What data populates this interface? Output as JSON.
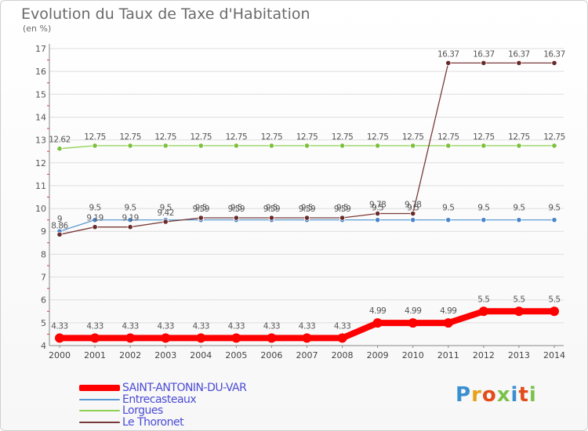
{
  "title": "Evolution du Taux de Taxe d'Habitation",
  "unit": "(en %)",
  "logo": {
    "text": "Proxiti",
    "colors": [
      "#3a8fd0",
      "#e8a21a",
      "#e34b1b",
      "#7bc24a",
      "#3a8fd0",
      "#e34b1b",
      "#7bc24a"
    ]
  },
  "chart_data": {
    "type": "line",
    "x": [
      "2000",
      "2001",
      "2002",
      "2003",
      "2004",
      "2005",
      "2006",
      "2007",
      "2008",
      "2009",
      "2010",
      "2011",
      "2012",
      "2013",
      "2014"
    ],
    "ylim": [
      4,
      17
    ],
    "yticks": [
      "4",
      "5",
      "6",
      "7",
      "8",
      "9",
      "10",
      "11",
      "12",
      "13",
      "14",
      "15",
      "16",
      "17"
    ],
    "grid": "horizontal",
    "legend_position": "bottom",
    "series": [
      {
        "name": "SAINT-ANTONIN-DU-VAR",
        "color": "#ff0000",
        "marker": "#ff0000",
        "width": 8,
        "values": [
          4.33,
          4.33,
          4.33,
          4.33,
          4.33,
          4.33,
          4.33,
          4.33,
          4.33,
          4.99,
          4.99,
          4.99,
          5.5,
          5.5,
          5.5
        ],
        "labels": [
          "4.33",
          "4.33",
          "4.33",
          "4.33",
          "4.33",
          "4.33",
          "4.33",
          "4.33",
          "4.33",
          "4.99",
          "4.99",
          "4.99",
          "5.5",
          "5.5",
          "5.5"
        ]
      },
      {
        "name": "Entrecasteaux",
        "color": "#5b9bd5",
        "marker": "#4a86c8",
        "width": 1.3,
        "values": [
          9.0,
          9.5,
          9.5,
          9.5,
          9.5,
          9.5,
          9.5,
          9.5,
          9.5,
          9.5,
          9.5,
          9.5,
          9.5,
          9.5,
          9.5
        ],
        "labels": [
          "9",
          "9.5",
          "9.5",
          "9.5",
          "9.5",
          "9.5",
          "9.5",
          "9.5",
          "9.5",
          "9.5",
          "9.5",
          "9.5",
          "9.5",
          "9.5",
          "9.5"
        ]
      },
      {
        "name": "Lorgues",
        "color": "#8fd14f",
        "marker": "#7ec03e",
        "width": 1.3,
        "values": [
          12.62,
          12.75,
          12.75,
          12.75,
          12.75,
          12.75,
          12.75,
          12.75,
          12.75,
          12.75,
          12.75,
          12.75,
          12.75,
          12.75,
          12.75
        ],
        "labels": [
          "12.62",
          "12.75",
          "12.75",
          "12.75",
          "12.75",
          "12.75",
          "12.75",
          "12.75",
          "12.75",
          "12.75",
          "12.75",
          "12.75",
          "12.75",
          "12.75",
          "12.75"
        ]
      },
      {
        "name": "Le Thoronet",
        "color": "#7a3a3a",
        "marker": "#6a2a2a",
        "width": 1.3,
        "values": [
          8.86,
          9.19,
          9.19,
          9.42,
          9.59,
          9.59,
          9.59,
          9.59,
          9.59,
          9.78,
          9.78,
          16.37,
          16.37,
          16.37,
          16.37
        ],
        "labels": [
          "8.86",
          "9.19",
          "9.19",
          "9.42",
          "9.59",
          "9.59",
          "9.59",
          "9.59",
          "9.59",
          "9.78",
          "9.78",
          "16.37",
          "16.37",
          "16.37",
          "16.37"
        ]
      }
    ]
  },
  "legend": [
    {
      "label": "SAINT-ANTONIN-DU-VAR",
      "color": "#ff0000",
      "text_color": "#4b4bd6"
    },
    {
      "label": "Entrecasteaux",
      "color": "#5b9bd5",
      "text_color": "#4b4bd6"
    },
    {
      "label": "Lorgues",
      "color": "#8fd14f",
      "text_color": "#4b4bd6"
    },
    {
      "label": "Le Thoronet",
      "color": "#7a3a3a",
      "text_color": "#4b4bd6"
    }
  ]
}
